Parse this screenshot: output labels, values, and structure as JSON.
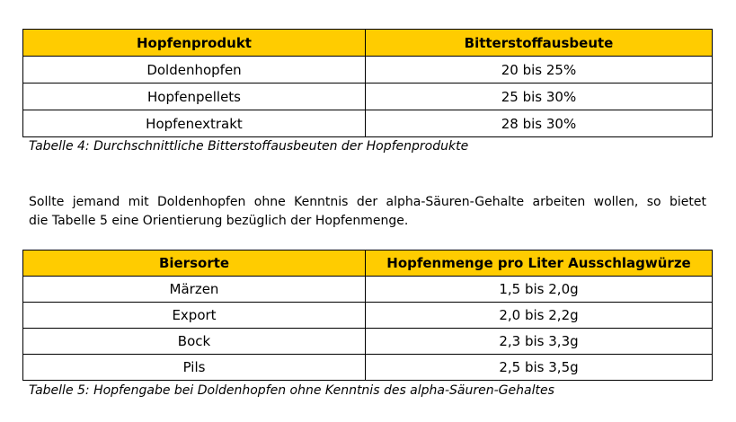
{
  "table4": {
    "headers": [
      "Hopfenprodukt",
      "Bitterstoffausbeute"
    ],
    "rows": [
      [
        "Doldenhopfen",
        "20 bis 25%"
      ],
      [
        "Hopfenpellets",
        "25 bis 30%"
      ],
      [
        "Hopfenextrakt",
        "28 bis 30%"
      ]
    ],
    "caption": "Tabelle 4: Durchschnittliche Bitterstoffausbeuten der Hopfenprodukte",
    "header_color": "#ffcc00"
  },
  "paragraph": {
    "line1": "Sollte jemand mit Doldenhopfen ohne Kenntnis der alpha-Säuren-Gehalte arbeiten wollen, so bietet",
    "line2": "die Tabelle 5 eine Orientierung bezüglich der Hopfenmenge."
  },
  "table5": {
    "headers": [
      "Biersorte",
      "Hopfenmenge pro Liter Ausschlagwürze"
    ],
    "rows": [
      [
        "Märzen",
        "1,5 bis 2,0g"
      ],
      [
        "Export",
        "2,0 bis 2,2g"
      ],
      [
        "Bock",
        "2,3 bis 3,3g"
      ],
      [
        "Pils",
        "2,5 bis 3,5g"
      ]
    ],
    "caption": "Tabelle 5: Hopfengabe bei Doldenhopfen ohne Kenntnis des alpha-Säuren-Gehaltes",
    "header_color": "#ffcc00"
  }
}
